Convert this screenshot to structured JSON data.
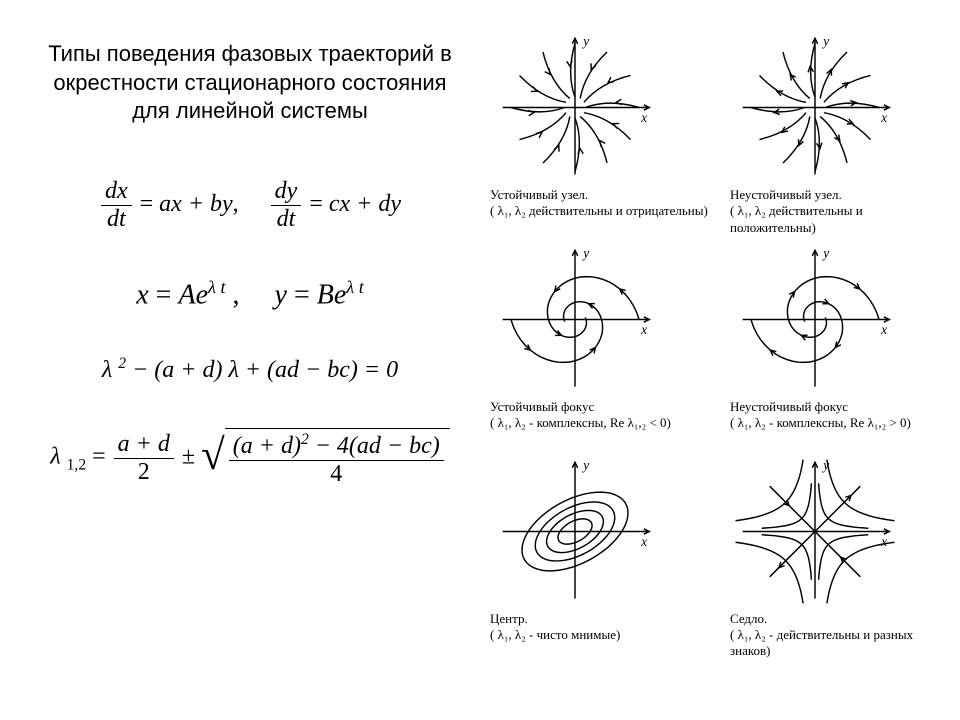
{
  "title": "Типы поведения фазовых траекторий в окрестности стационарного состояния для линейной системы",
  "equations": {
    "system": {
      "dx": "dx",
      "dt": "dt",
      "eq1_rhs": "ax + by",
      "dy": "dy",
      "eq2_rhs": "cx + dy",
      "sep": ","
    },
    "solution": {
      "x": "x",
      "A": "A",
      "e": "e",
      "lambda_t": "λ t",
      "y": "y",
      "B": "B",
      "sep": ","
    },
    "char": {
      "lambda": "λ",
      "two": "2",
      "minus": " − (a + d) λ   + (ad − bc) = 0"
    },
    "roots": {
      "lambda": "λ",
      "sub": "1,2",
      "eq": " = ",
      "num1": "a + d",
      "den1": "2",
      "pm": " ± ",
      "rad_num": "(a + d)",
      "rad_sup": "2",
      "rad_rest": " − 4(ad − bc)",
      "den2": "4"
    }
  },
  "portraits": [
    {
      "id": "stable-node",
      "type": "node",
      "direction": "in",
      "title": "Устойчивый узел.",
      "cond": "( λ₁, λ₂ действительны и отрицательны)"
    },
    {
      "id": "unstable-node",
      "type": "node",
      "direction": "out",
      "title": "Неустойчивый узел.",
      "cond": "( λ₁, λ₂ действительны и положительны)"
    },
    {
      "id": "stable-focus",
      "type": "spiral",
      "direction": "in",
      "title": "Устойчивый фокус",
      "cond": "( λ₁, λ₂ - комплексны, Re λ₁,₂ < 0)"
    },
    {
      "id": "unstable-focus",
      "type": "spiral",
      "direction": "out",
      "title": "Неустойчивый фокус",
      "cond": "( λ₁, λ₂ - комплексны, Re λ₁,₂ > 0)"
    },
    {
      "id": "center",
      "type": "center",
      "direction": "loop",
      "title": "Центр.",
      "cond": "( λ₁, λ₂ - чисто мнимые)"
    },
    {
      "id": "saddle",
      "type": "saddle",
      "direction": "saddle",
      "title": "Седло.",
      "cond": "( λ₁, λ₂ - действительны и разных знаков)"
    }
  ],
  "style": {
    "stroke": "#000000",
    "stroke_width": 1.4,
    "axis_font": "italic 13px Times New Roman",
    "plot_bg": "#ffffff"
  }
}
